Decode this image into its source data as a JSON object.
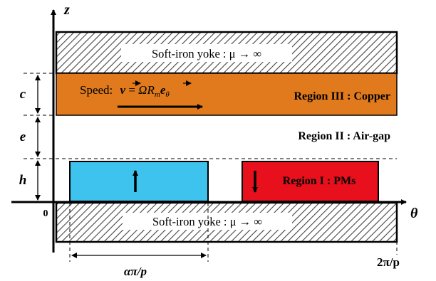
{
  "axes": {
    "z_label": "z",
    "theta_label": "θ",
    "origin_label": "0"
  },
  "yoke_top": {
    "label": "Soft-iron yoke : μ → ∞",
    "fill": "#ffffff"
  },
  "copper": {
    "color": "#e07a1c",
    "speed_label": "Speed:",
    "speed_formula": {
      "v": "v",
      "eq": " = ",
      "omega": "Ω",
      "R": "R",
      "R_sub": "m",
      "e": "e",
      "e_sub": "θ"
    },
    "region_label": "Region III : Copper"
  },
  "airgap": {
    "region_label": "Region II : Air-gap"
  },
  "magnets": {
    "left_color": "#3ec3ef",
    "right_color": "#e8101c",
    "right_label": "Region I : PMs"
  },
  "yoke_bottom": {
    "label": "Soft-iron yoke : μ → ∞"
  },
  "dims": {
    "c": "c",
    "e": "e",
    "h": "h",
    "alpha_pi_p": "απ/p",
    "two_pi_p": "2π/p"
  }
}
